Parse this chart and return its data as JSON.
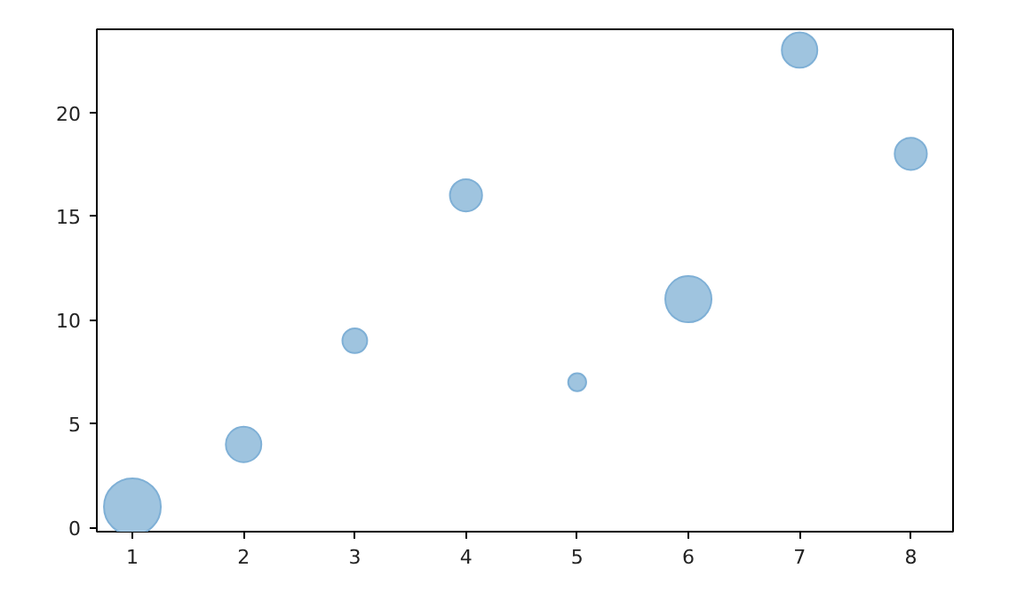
{
  "chart_data": {
    "type": "bubble",
    "x": [
      1,
      2,
      3,
      4,
      5,
      6,
      7,
      8
    ],
    "values": [
      1,
      4,
      9,
      16,
      7,
      11,
      23,
      18
    ],
    "sizes": [
      1,
      0.39,
      0.19,
      0.32,
      0.1,
      0.66,
      0.39,
      0.32
    ],
    "color": "#9fc4df",
    "xlim": [
      0.68,
      8.38
    ],
    "ylim": [
      -0.2,
      24
    ],
    "xticks": [
      1,
      2,
      3,
      4,
      5,
      6,
      7,
      8
    ],
    "yticks": [
      0,
      5,
      10,
      15,
      20
    ],
    "grid": false
  }
}
